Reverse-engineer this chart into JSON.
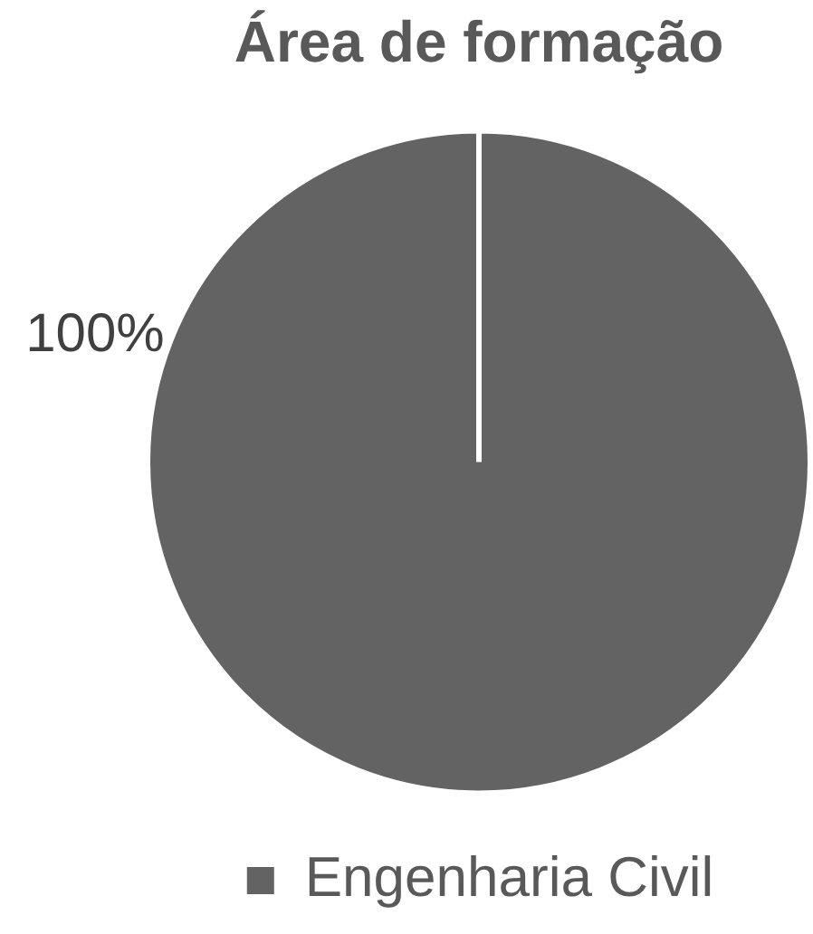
{
  "chart_data": {
    "type": "pie",
    "title": "Área de formação",
    "categories": [
      "Engenharia Civil"
    ],
    "values": [
      100
    ],
    "colors": [
      "#636363"
    ],
    "value_labels": [
      "100%"
    ],
    "legend": "bottom"
  }
}
